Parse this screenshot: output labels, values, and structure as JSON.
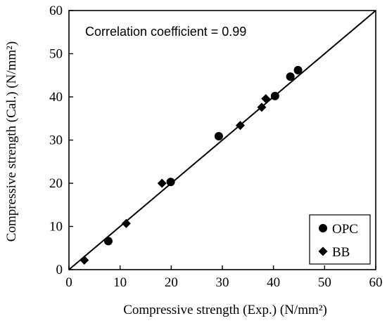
{
  "chart_data": {
    "type": "scatter",
    "xlabel": "Compressive strength (Exp.) (N/mm²)",
    "ylabel": "Compressive strength (Cal.) (N/mm²)",
    "xlim": [
      0,
      60
    ],
    "ylim": [
      0,
      60
    ],
    "xticks": [
      0,
      10,
      20,
      30,
      40,
      50,
      60
    ],
    "yticks": [
      0,
      10,
      20,
      30,
      40,
      50,
      60
    ],
    "grid": false,
    "legend_position": "bottom-right",
    "annotation": "Correlation coefficient  = 0.99",
    "reference_line": {
      "label": "",
      "from": [
        0,
        0
      ],
      "to": [
        60,
        60
      ]
    },
    "series": [
      {
        "name": "OPC",
        "marker": "circle",
        "color": "#000000",
        "points": [
          [
            7.7,
            6.6
          ],
          [
            19.9,
            20.3
          ],
          [
            29.3,
            30.9
          ],
          [
            40.3,
            40.2
          ],
          [
            43.3,
            44.7
          ],
          [
            44.8,
            46.2
          ]
        ]
      },
      {
        "name": "BB",
        "marker": "diamond",
        "color": "#000000",
        "points": [
          [
            3.0,
            2.2
          ],
          [
            11.2,
            10.7
          ],
          [
            18.2,
            20.0
          ],
          [
            33.5,
            33.4
          ],
          [
            37.7,
            37.6
          ],
          [
            38.5,
            39.6
          ]
        ]
      }
    ]
  }
}
